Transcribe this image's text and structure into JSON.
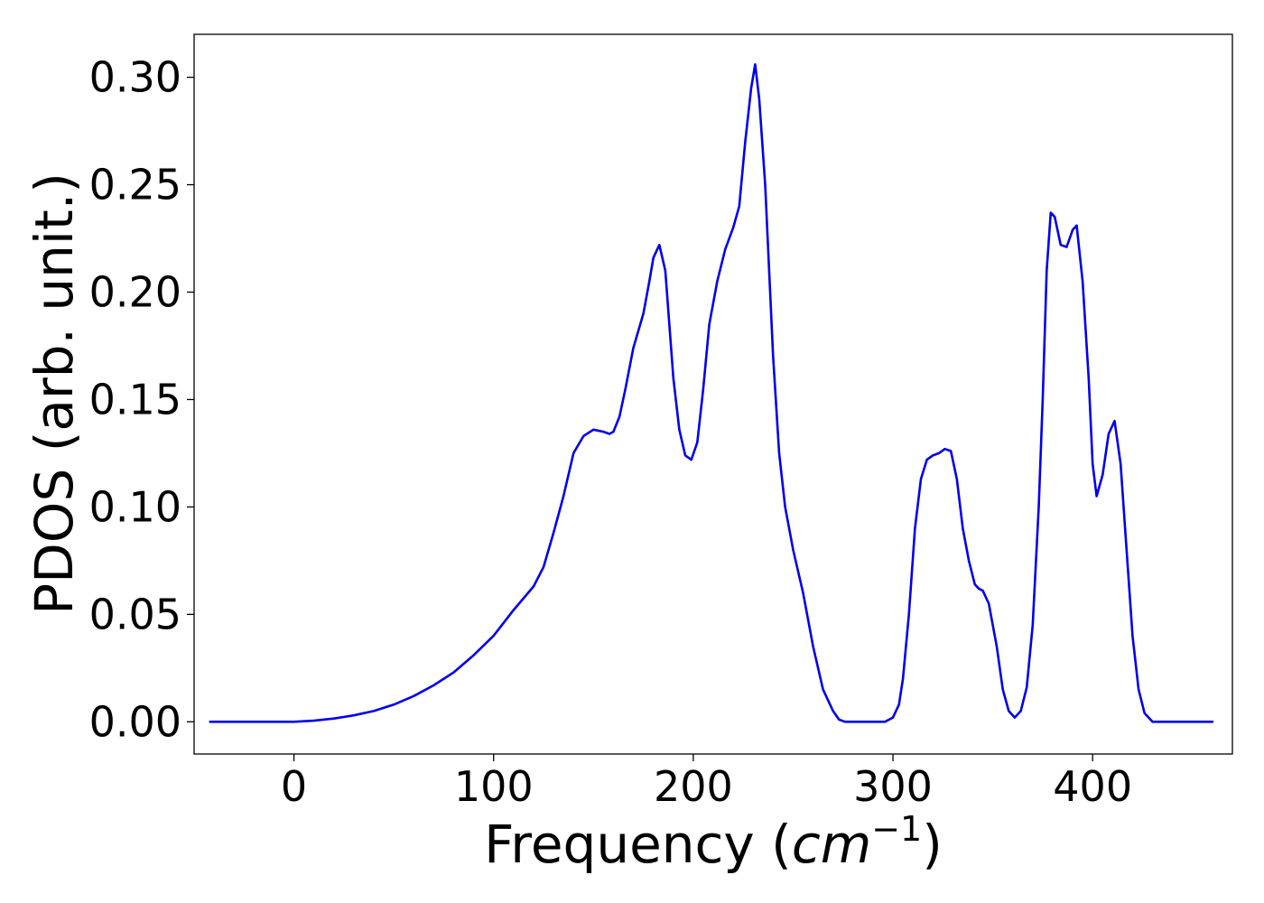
{
  "chart_data": {
    "type": "line",
    "title": "",
    "xlabel_main": "Frequency (",
    "xlabel_unit": "cm",
    "xlabel_exp": "−1",
    "xlabel_close": ")",
    "ylabel": "PDOS (arb. unit.)",
    "xlim": [
      -50,
      470
    ],
    "ylim": [
      -0.015,
      0.32
    ],
    "xticks": [
      0,
      100,
      200,
      300,
      400
    ],
    "xtick_labels": [
      "0",
      "100",
      "200",
      "300",
      "400"
    ],
    "yticks": [
      0.0,
      0.05,
      0.1,
      0.15,
      0.2,
      0.25,
      0.3
    ],
    "ytick_labels": [
      "0.00",
      "0.05",
      "0.10",
      "0.15",
      "0.20",
      "0.25",
      "0.30"
    ],
    "grid": false,
    "legend": "none",
    "series": [
      {
        "color": "#0000ee",
        "x": [
          -42,
          0,
          10,
          20,
          30,
          40,
          50,
          60,
          70,
          80,
          90,
          100,
          110,
          120,
          125,
          130,
          135,
          140,
          145,
          150,
          155,
          158,
          160,
          163,
          166,
          170,
          175,
          178,
          180,
          183,
          186,
          190,
          193,
          196,
          199,
          202,
          205,
          208,
          212,
          216,
          220,
          223,
          226,
          229,
          231,
          233,
          236,
          240,
          243,
          246,
          250,
          255,
          260,
          265,
          270,
          273,
          276,
          280,
          290,
          296,
          300,
          303,
          305,
          308,
          311,
          314,
          317,
          320,
          323,
          326,
          329,
          332,
          335,
          338,
          341,
          343,
          345,
          348,
          352,
          355,
          358,
          361,
          364,
          367,
          370,
          373,
          375,
          377,
          379,
          381,
          384,
          387,
          390,
          392,
          395,
          398,
          400,
          402,
          405,
          408,
          411,
          414,
          417,
          420,
          423,
          426,
          430,
          440,
          460
        ],
        "y": [
          0.0,
          0.0,
          0.0005,
          0.0015,
          0.003,
          0.005,
          0.008,
          0.012,
          0.017,
          0.023,
          0.031,
          0.04,
          0.052,
          0.063,
          0.072,
          0.088,
          0.105,
          0.125,
          0.133,
          0.136,
          0.135,
          0.134,
          0.135,
          0.142,
          0.155,
          0.174,
          0.19,
          0.205,
          0.216,
          0.222,
          0.21,
          0.16,
          0.136,
          0.124,
          0.122,
          0.13,
          0.155,
          0.185,
          0.205,
          0.22,
          0.23,
          0.24,
          0.27,
          0.295,
          0.306,
          0.29,
          0.25,
          0.17,
          0.125,
          0.1,
          0.08,
          0.06,
          0.035,
          0.015,
          0.005,
          0.001,
          0.0,
          0.0,
          0.0,
          0.0,
          0.002,
          0.008,
          0.02,
          0.05,
          0.09,
          0.113,
          0.122,
          0.124,
          0.125,
          0.127,
          0.126,
          0.113,
          0.09,
          0.075,
          0.064,
          0.062,
          0.061,
          0.055,
          0.035,
          0.015,
          0.005,
          0.002,
          0.005,
          0.016,
          0.045,
          0.1,
          0.15,
          0.21,
          0.237,
          0.235,
          0.222,
          0.221,
          0.229,
          0.231,
          0.205,
          0.16,
          0.12,
          0.105,
          0.115,
          0.134,
          0.14,
          0.12,
          0.08,
          0.04,
          0.015,
          0.004,
          0.0,
          0.0,
          0.0
        ]
      }
    ]
  }
}
